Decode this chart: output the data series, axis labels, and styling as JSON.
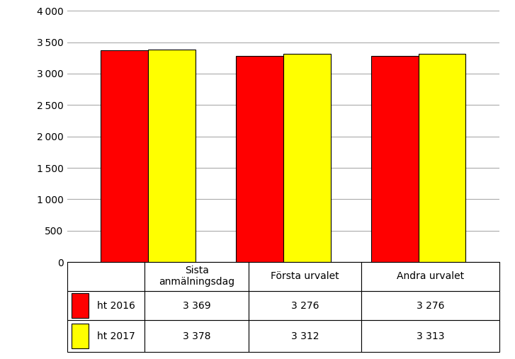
{
  "categories": [
    "Sista\nanmälningsdag",
    "Första urvalet",
    "Andra urvalet"
  ],
  "series": [
    {
      "label": "ht 2016",
      "values": [
        3369,
        3276,
        3276
      ],
      "color": "#FF0000"
    },
    {
      "label": "ht 2017",
      "values": [
        3378,
        3312,
        3313
      ],
      "color": "#FFFF00"
    }
  ],
  "ylim": [
    0,
    4000
  ],
  "yticks": [
    0,
    500,
    1000,
    1500,
    2000,
    2500,
    3000,
    3500,
    4000
  ],
  "bar_width": 0.35,
  "legend_colors": [
    "#FF0000",
    "#FFFF00"
  ],
  "legend_labels": [
    "ht 2016",
    "ht 2017"
  ],
  "table_data": [
    [
      "3 369",
      "3 276",
      "3 276"
    ],
    [
      "3 378",
      "3 312",
      "3 313"
    ]
  ],
  "table_col_labels": [
    "Sista\nanmälningsdag",
    "Första urvalet",
    "Andra urvalet"
  ],
  "background_color": "#FFFFFF",
  "grid_color": "#AAAAAA"
}
